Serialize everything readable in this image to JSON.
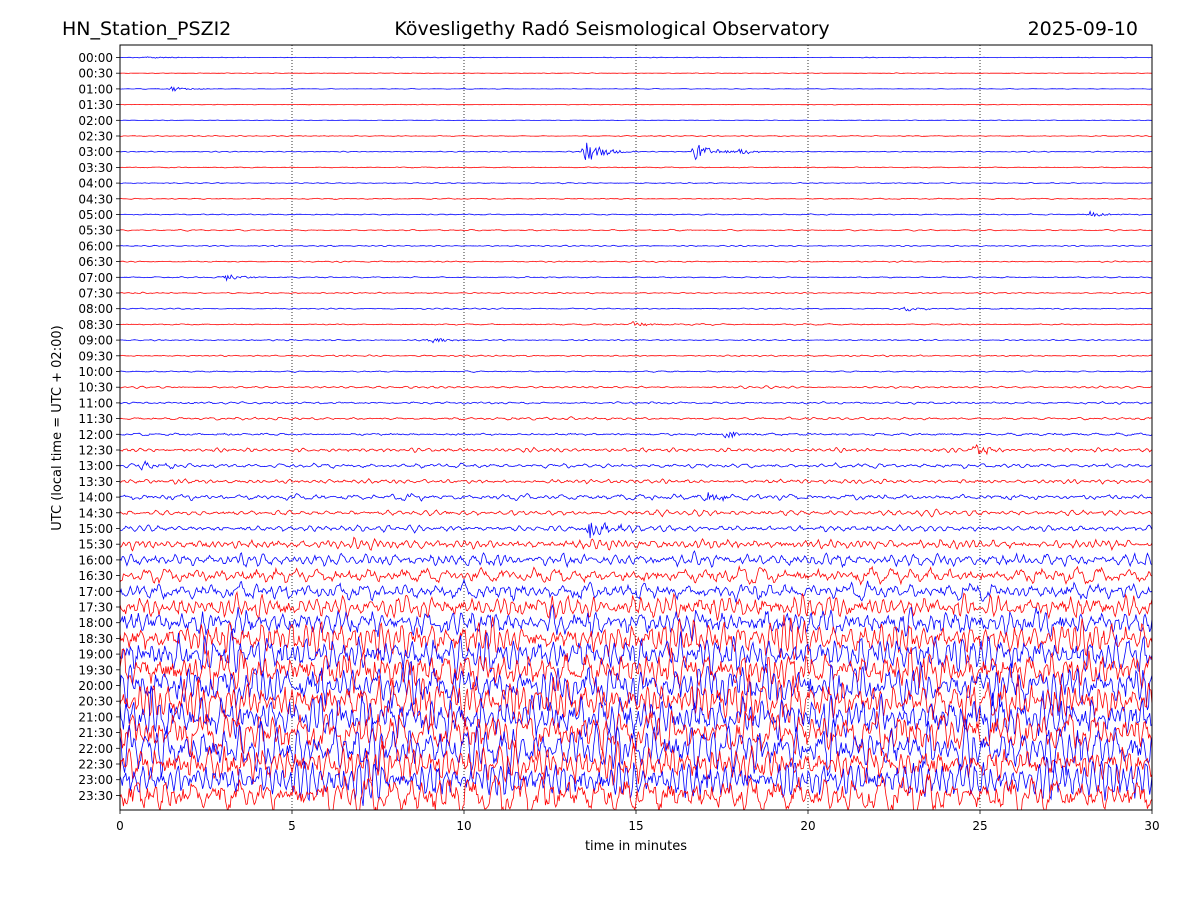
{
  "header": {
    "station": "HN_Station_PSZI2",
    "observatory": "Kövesligethy Radó Seismological Observatory",
    "date": "2025-09-10"
  },
  "chart_data": {
    "type": "line",
    "title": "Kövesligethy Radó Seismological Observatory",
    "xlabel": "time in minutes",
    "ylabel": "UTC (local time = UTC + 02:00)",
    "xlim": [
      0,
      30
    ],
    "x_ticks": [
      "0",
      "5",
      "10",
      "15",
      "20",
      "25",
      "30"
    ],
    "row_labels": [
      "00:00",
      "00:30",
      "01:00",
      "01:30",
      "02:00",
      "02:30",
      "03:00",
      "03:30",
      "04:00",
      "04:30",
      "05:00",
      "05:30",
      "06:00",
      "06:30",
      "07:00",
      "07:30",
      "08:00",
      "08:30",
      "09:00",
      "09:30",
      "10:00",
      "10:30",
      "11:00",
      "11:30",
      "12:00",
      "12:30",
      "13:00",
      "13:30",
      "14:00",
      "14:30",
      "15:00",
      "15:30",
      "16:00",
      "16:30",
      "17:00",
      "17:30",
      "18:00",
      "18:30",
      "19:00",
      "19:30",
      "20:00",
      "20:30",
      "21:00",
      "21:30",
      "22:00",
      "22:30",
      "23:00",
      "23:30"
    ],
    "trace_colors": [
      "#0000ff",
      "#ff0000"
    ],
    "grid": "vertical dotted lines at every 5 minutes",
    "amplitude_profile": [
      0.3,
      0.3,
      0.3,
      0.3,
      0.3,
      0.4,
      0.5,
      0.5,
      0.5,
      0.5,
      0.6,
      0.6,
      0.6,
      0.6,
      0.6,
      0.6,
      0.6,
      0.6,
      0.7,
      0.7,
      0.8,
      0.9,
      1.1,
      1.3,
      1.6,
      1.8,
      2.0,
      2.2,
      2.4,
      2.7,
      3.2,
      4.5,
      6.0,
      7.5,
      9,
      11,
      14,
      16,
      18,
      19,
      20,
      20,
      20,
      20,
      20,
      20,
      20,
      20
    ],
    "events": [
      {
        "row": "00:00",
        "minute": 0.8,
        "strength": 1.5
      },
      {
        "row": "01:00",
        "minute": 1.5,
        "strength": 2.5
      },
      {
        "row": "03:00",
        "minute": 13.5,
        "strength": 14
      },
      {
        "row": "03:00",
        "minute": 16.7,
        "strength": 9
      },
      {
        "row": "03:00",
        "minute": 18.0,
        "strength": 3
      },
      {
        "row": "05:00",
        "minute": 28.2,
        "strength": 3
      },
      {
        "row": "07:00",
        "minute": 3.1,
        "strength": 3
      },
      {
        "row": "08:00",
        "minute": 22.8,
        "strength": 3
      },
      {
        "row": "08:30",
        "minute": 14.9,
        "strength": 3
      },
      {
        "row": "09:00",
        "minute": 9.0,
        "strength": 3
      },
      {
        "row": "12:00",
        "minute": 17.6,
        "strength": 4
      },
      {
        "row": "12:30",
        "minute": 24.8,
        "strength": 6
      },
      {
        "row": "13:00",
        "minute": 0.6,
        "strength": 5
      },
      {
        "row": "14:00",
        "minute": 8.2,
        "strength": 3
      },
      {
        "row": "14:00",
        "minute": 17.0,
        "strength": 6
      },
      {
        "row": "15:00",
        "minute": 13.6,
        "strength": 12
      }
    ]
  }
}
